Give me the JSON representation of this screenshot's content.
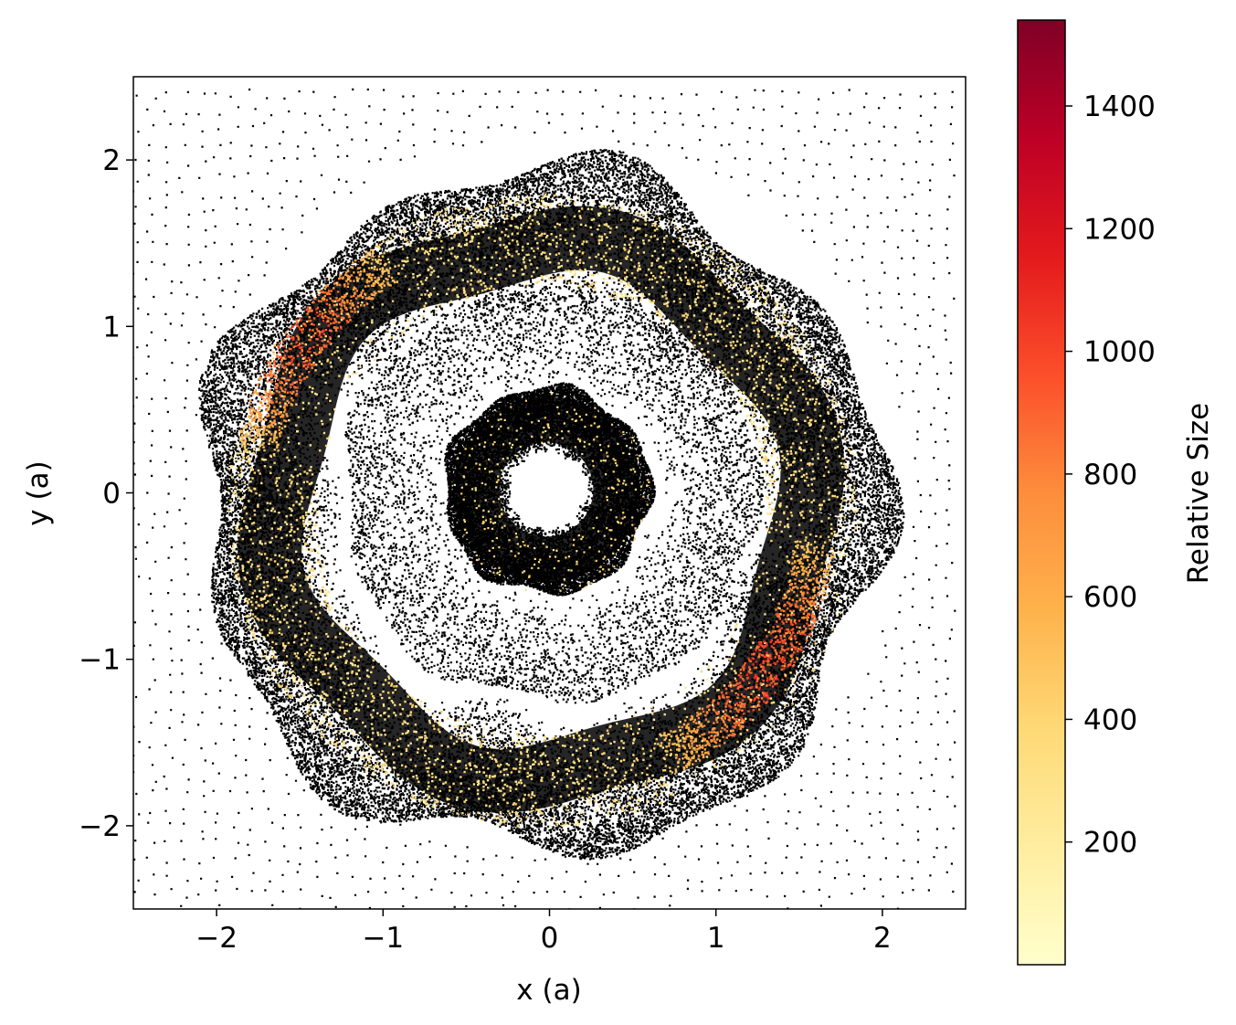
{
  "chart_data": {
    "type": "scatter",
    "title": "",
    "xlabel": "x (a)",
    "ylabel": "y (a)",
    "xlim": [
      -2.5,
      2.5
    ],
    "ylim": [
      -2.5,
      2.5
    ],
    "x_ticks": [
      -2,
      -1,
      0,
      1,
      2
    ],
    "x_tick_labels": [
      "−2",
      "−1",
      "0",
      "1",
      "2"
    ],
    "y_ticks": [
      -2,
      -1,
      0,
      1,
      2
    ],
    "y_tick_labels": [
      "−2",
      "−1",
      "0",
      "1",
      "2"
    ],
    "grid": false,
    "point_color_default": "#000000",
    "colorbar": {
      "label": "Relative Size",
      "range": [
        0,
        1540
      ],
      "ticks": [
        200,
        400,
        600,
        800,
        1000,
        1200,
        1400
      ],
      "tick_labels": [
        "200",
        "400",
        "600",
        "800",
        "1000",
        "1200",
        "1400"
      ],
      "colormap": "YlOrRd",
      "colormap_stops": [
        "#ffffcc",
        "#ffeda0",
        "#fed976",
        "#feb24c",
        "#fd8d3c",
        "#fc4e2a",
        "#e31a1c",
        "#bd0026",
        "#800026"
      ]
    },
    "structures": {
      "central_hole_radius": 0.22,
      "inner_ring": {
        "inner_radius": 0.22,
        "outer_radius": 0.62
      },
      "gap": {
        "inner_radius": 0.62,
        "outer_radius": 1.25
      },
      "outer_ring": {
        "inner_radius": 1.25,
        "outer_radius": 2.05
      },
      "colored_arcs": [
        {
          "center_angle_deg": 145,
          "half_width_deg": 25,
          "radius": 1.75,
          "peak_size": 1000
        },
        {
          "center_angle_deg": -35,
          "half_width_deg": 30,
          "radius": 1.65,
          "peak_size": 1050
        }
      ],
      "background_grid_spacing": 0.1
    }
  }
}
